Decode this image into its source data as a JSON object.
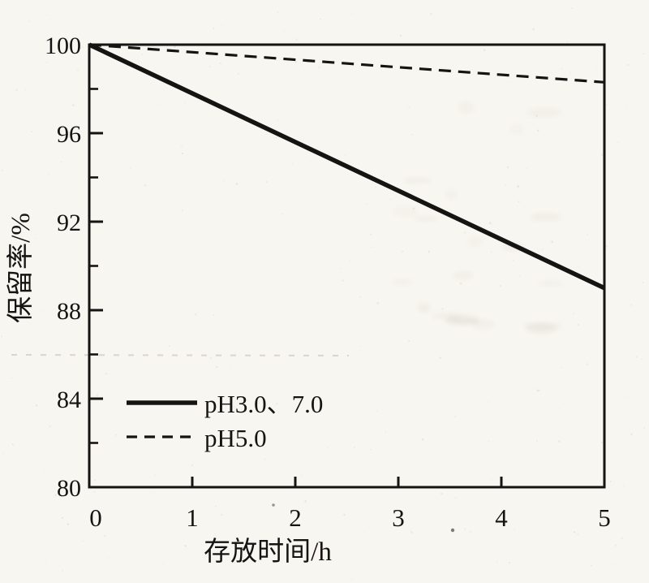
{
  "figure": {
    "background_color": "#f8f6f0",
    "ink_color": "#161412",
    "plot_fill": "#fbfaf6"
  },
  "chart_data": {
    "type": "line",
    "title": "",
    "xlabel": "存放时间/h",
    "ylabel": "保留率/%",
    "xlim": [
      0,
      5
    ],
    "ylim": [
      80,
      100
    ],
    "x_ticks": [
      0,
      1,
      2,
      3,
      4,
      5
    ],
    "x_tick_labels": [
      "0",
      "1",
      "2",
      "3",
      "4",
      "5"
    ],
    "y_major_ticks": [
      80,
      84,
      88,
      92,
      96,
      100
    ],
    "y_major_tick_labels": [
      "80",
      "84",
      "88",
      "92",
      "96",
      "100"
    ],
    "y_minor_ticks": [
      82,
      86,
      90,
      94,
      98
    ],
    "grid": false,
    "legend_position": "inside-lower-left",
    "series": [
      {
        "name": "pH3.0、7.0",
        "style": "solid",
        "x": [
          0,
          5
        ],
        "values": [
          100,
          89.0
        ]
      },
      {
        "name": "pH5.0",
        "style": "dashed",
        "x": [
          0,
          5
        ],
        "values": [
          100,
          98.3
        ]
      }
    ]
  }
}
